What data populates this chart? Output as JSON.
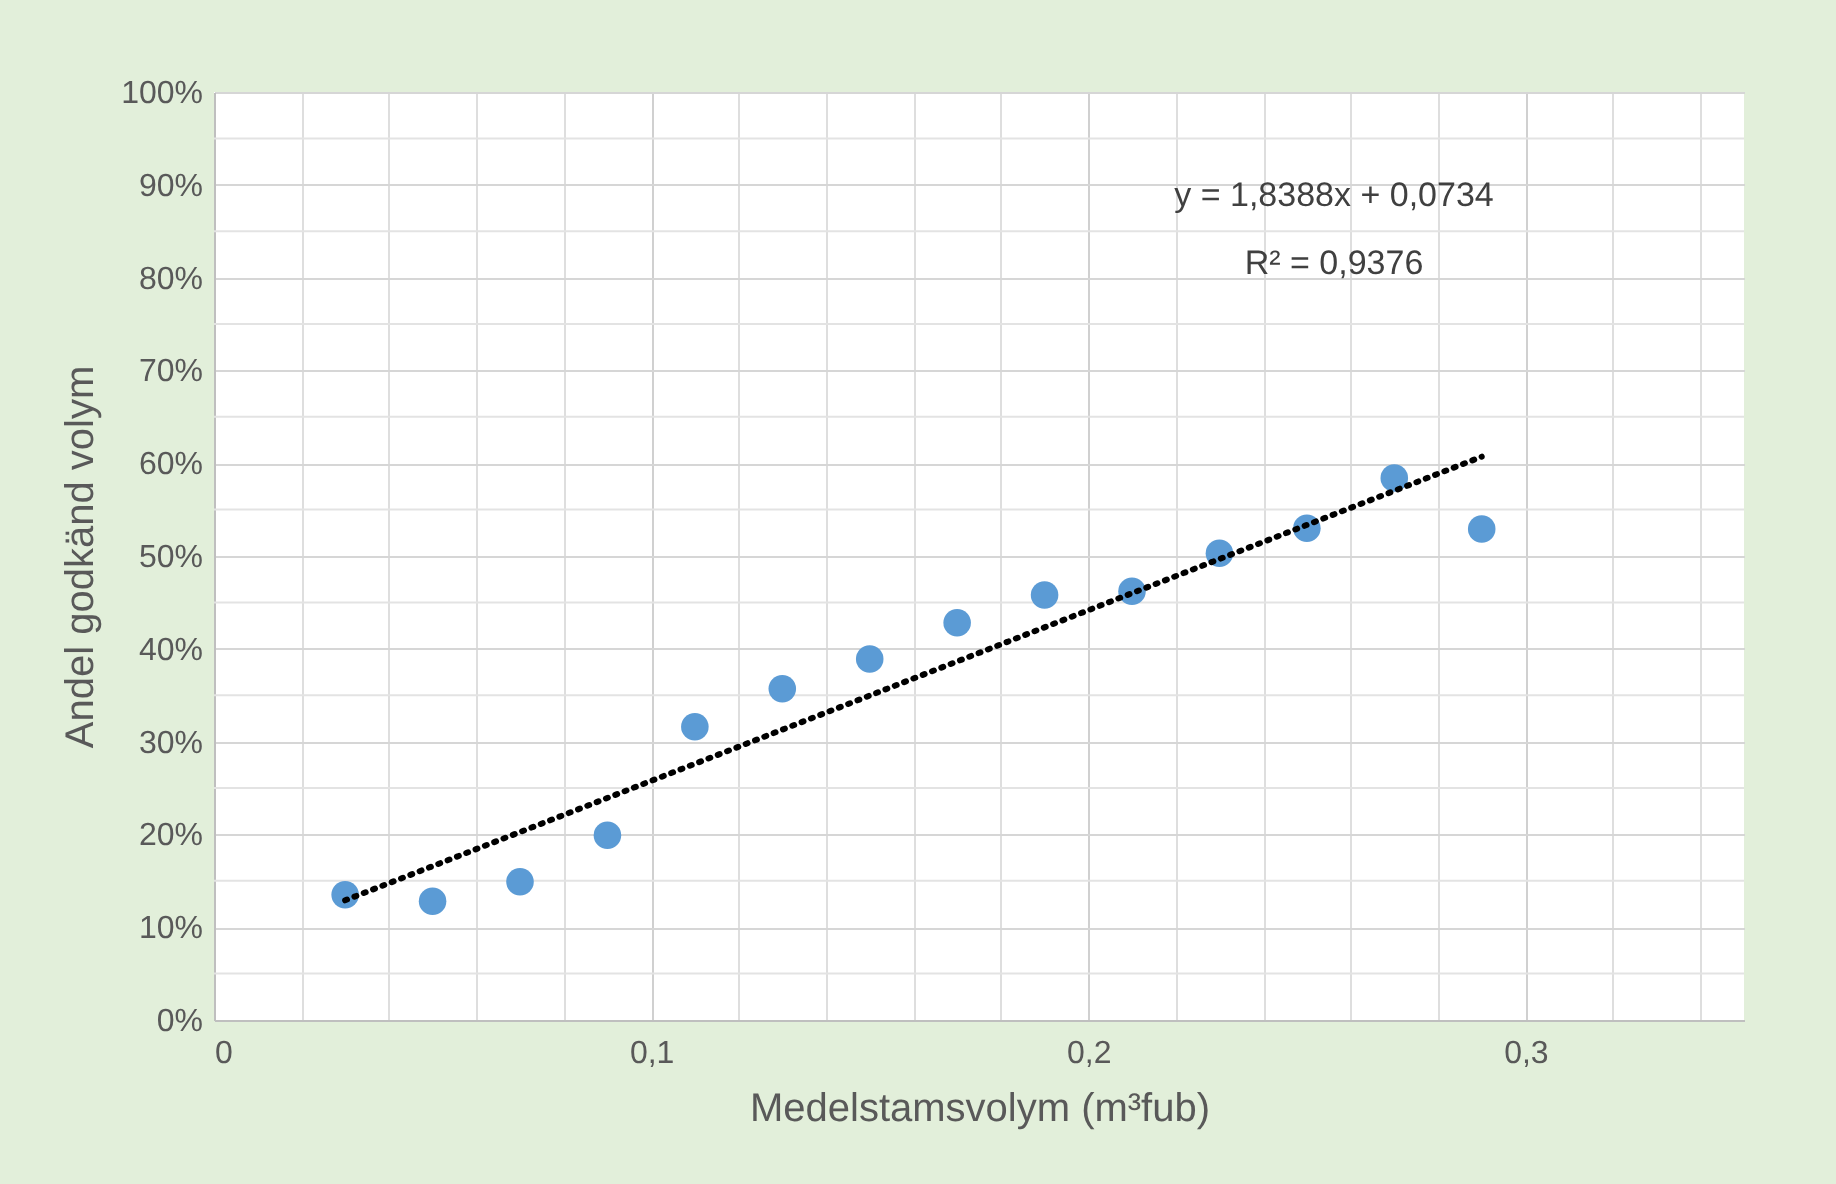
{
  "chart_data": {
    "type": "scatter",
    "xlabel": "Medelstamsvolym (m³fub)",
    "ylabel": "Andel godkänd volym",
    "x": [
      0.03,
      0.05,
      0.07,
      0.09,
      0.11,
      0.13,
      0.15,
      0.17,
      0.19,
      0.21,
      0.23,
      0.25,
      0.27,
      0.29
    ],
    "series": [
      {
        "color": "#5b9bd5",
        "marker": "circle",
        "values": [
          0.135,
          0.128,
          0.149,
          0.199,
          0.316,
          0.357,
          0.389,
          0.428,
          0.458,
          0.462,
          0.503,
          0.53,
          0.584,
          0.529
        ]
      },
      {
        "type": "line",
        "color": "#000000",
        "line_style": "dotted",
        "x": [
          0.03,
          0.29
        ],
        "values": [
          0.129,
          0.607
        ]
      }
    ],
    "xlim": [
      0,
      0.35
    ],
    "xticks": [
      0,
      {
        "value": 0.02,
        "label": null
      },
      {
        "value": 0.04,
        "label": null
      },
      {
        "value": 0.06,
        "label": null
      },
      {
        "value": 0.08,
        "label": null
      },
      {
        "value": 0.1,
        "label": "0,1"
      },
      {
        "value": 0.12,
        "label": null
      },
      {
        "value": 0.14,
        "label": null
      },
      {
        "value": 0.16,
        "label": null
      },
      {
        "value": 0.18,
        "label": null
      },
      {
        "value": 0.2,
        "label": "0,2"
      },
      {
        "value": 0.22,
        "label": null
      },
      {
        "value": 0.24,
        "label": null
      },
      {
        "value": 0.26,
        "label": null
      },
      {
        "value": 0.28,
        "label": null
      },
      {
        "value": 0.3,
        "label": "0,3"
      },
      {
        "value": 0.32,
        "label": null
      },
      {
        "value": 0.34,
        "label": null
      }
    ],
    "ylim": [
      0,
      1
    ],
    "yticks": [
      {
        "value": 0,
        "label": "0%"
      },
      {
        "value": 0.05,
        "label": null
      },
      {
        "value": 0.1,
        "label": "10%"
      },
      {
        "value": 0.15,
        "label": null
      },
      {
        "value": 0.2,
        "label": "20%"
      },
      {
        "value": 0.25,
        "label": null
      },
      {
        "value": 0.3,
        "label": "30%"
      },
      {
        "value": 0.35,
        "label": null
      },
      {
        "value": 0.4,
        "label": "40%"
      },
      {
        "value": 0.45,
        "label": null
      },
      {
        "value": 0.5,
        "label": "50%"
      },
      {
        "value": 0.55,
        "label": null
      },
      {
        "value": 0.6,
        "label": "60%"
      },
      {
        "value": 0.65,
        "label": null
      },
      {
        "value": 0.7,
        "label": "70%"
      },
      {
        "value": 0.75,
        "label": null
      },
      {
        "value": 0.8,
        "label": "80%"
      },
      {
        "value": 0.85,
        "label": null
      },
      {
        "value": 0.9,
        "label": "90%"
      },
      {
        "value": 0.95,
        "label": null
      },
      {
        "value": 1,
        "label": "100%"
      }
    ],
    "grid": true,
    "annotations": [
      "y = 1,8388x + 0,0734",
      "R² = 0,9376"
    ]
  }
}
